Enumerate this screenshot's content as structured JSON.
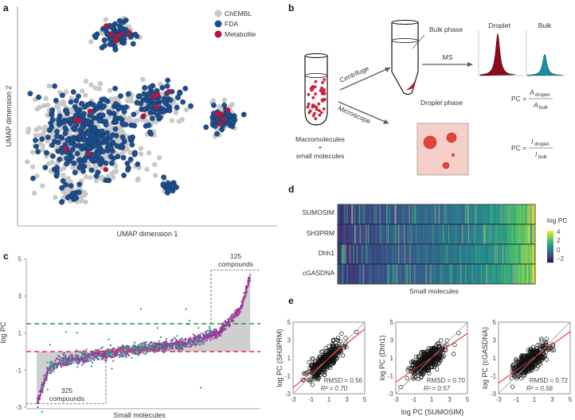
{
  "panels": {
    "a": "a",
    "b": "b",
    "c": "c",
    "d": "d",
    "e": "e"
  },
  "diagram": {
    "bulk_phase": "Bulk phase",
    "droplet_phase": "Droplet phase",
    "centrifuge": "Centrifuge",
    "microscope": "Microscope",
    "ms": "MS",
    "mix_line1": "Macromolecules",
    "mix_line2": "+",
    "mix_line3": "small molecules",
    "droplet_title": "Droplet",
    "bulk_title": "Bulk",
    "pc_eq1": {
      "lhs": "PC =",
      "num": "A",
      "num_sub": "droplet",
      "den": "A",
      "den_sub": "bulk"
    },
    "pc_eq2": {
      "lhs": "PC =",
      "num": "I",
      "num_sub": "droplet",
      "den": "I",
      "den_sub": "bulk"
    },
    "colors": {
      "droplet": "#8b0a1e",
      "bulk": "#1a8fa0",
      "dots": "#d0203a",
      "arrow": "#4a5f7a",
      "micro_bg": "#f6d0c8",
      "micro_drop": "#e0443e"
    }
  },
  "chart_data": [
    {
      "id": "a",
      "type": "scatter",
      "xlabel": "UMAP dimension 1",
      "ylabel": "UMAP dimension 2",
      "legend": [
        {
          "label": "ChEMBL",
          "color": "#c8c8c8"
        },
        {
          "label": "FDA",
          "color": "#1f4e8c"
        },
        {
          "label": "Metabolite",
          "color": "#b0173a"
        }
      ],
      "legend_position": "top-right",
      "xlim": [
        0,
        10
      ],
      "ylim": [
        0,
        10
      ],
      "clusters": [
        {
          "x": 2.7,
          "y": 4.1,
          "sx": 1.6,
          "sy": 1.5,
          "n": 900,
          "fda": 0.35
        },
        {
          "x": 3.8,
          "y": 8.7,
          "sx": 0.55,
          "sy": 0.45,
          "n": 160,
          "fda": 0.55
        },
        {
          "x": 7.9,
          "y": 4.9,
          "sx": 0.4,
          "sy": 0.55,
          "n": 120,
          "fda": 0.5
        },
        {
          "x": 5.3,
          "y": 5.6,
          "sx": 0.8,
          "sy": 0.7,
          "n": 220,
          "fda": 0.3
        },
        {
          "x": 5.8,
          "y": 1.8,
          "sx": 0.25,
          "sy": 0.25,
          "n": 40,
          "fda": 0.5
        },
        {
          "x": 2.1,
          "y": 1.5,
          "sx": 0.5,
          "sy": 0.4,
          "n": 60,
          "fda": 0.3
        }
      ]
    },
    {
      "id": "c",
      "type": "scatter",
      "xlabel": "Small molecules",
      "ylabel": "log PC",
      "ylim": [
        -3,
        5
      ],
      "yticks": [
        "5",
        "3",
        "1",
        "-1",
        "-3"
      ],
      "sorted_curve_knots": [
        [
          0,
          -2.7
        ],
        [
          0.02,
          -2.0
        ],
        [
          0.05,
          -1.0
        ],
        [
          0.1,
          -0.55
        ],
        [
          0.3,
          -0.1
        ],
        [
          0.5,
          0.2
        ],
        [
          0.7,
          0.5
        ],
        [
          0.85,
          1.1
        ],
        [
          0.95,
          2.3
        ],
        [
          1.0,
          4.2
        ]
      ],
      "n_points": 1400,
      "thresholds": [
        {
          "value": 1.5,
          "color": "#1a9a4a"
        },
        {
          "value": 0,
          "color": "#e8323c"
        }
      ],
      "series_colors": {
        "main": "#9a3a98",
        "other": "#1fa98f"
      },
      "annotations": [
        {
          "count": "125",
          "label": "compounds",
          "region": "top-right"
        },
        {
          "count": "325",
          "label": "compounds",
          "region": "bottom-left"
        }
      ]
    },
    {
      "id": "d",
      "type": "heatmap",
      "rows": [
        "SUMOSIM",
        "SH3PRM",
        "Dhh1",
        "cGASDNA"
      ],
      "xlabel": "Small molecules",
      "colorbar_title": "log PC",
      "colorbar_ticks": [
        "4",
        "2",
        "0",
        "−2"
      ],
      "range": [
        -2,
        4
      ],
      "n_columns": 260
    },
    {
      "id": "e",
      "type": "scatter",
      "xlabel": "log PC (SUMOSIM)",
      "xlim": [
        -3,
        5
      ],
      "ylim": [
        -3,
        5
      ],
      "ticks": [
        "-3",
        "-1",
        "1",
        "3",
        "5"
      ],
      "plots": [
        {
          "ylabel": "log PC (SH3PRM)",
          "rmsd": "RMSD = 0.56",
          "r2": "R² = 0.70",
          "slope": 0.82,
          "intercept": 0.15
        },
        {
          "ylabel": "log PC (Dhh1)",
          "rmsd": "RMSD = 0.70",
          "r2": "R² = 0.57",
          "slope": 0.68,
          "intercept": 0.35
        },
        {
          "ylabel": "log PC (cGASDNA)",
          "rmsd": "RMSD = 0.72",
          "r2": "R² = 0.56",
          "slope": 0.72,
          "intercept": 0.35
        }
      ]
    }
  ]
}
